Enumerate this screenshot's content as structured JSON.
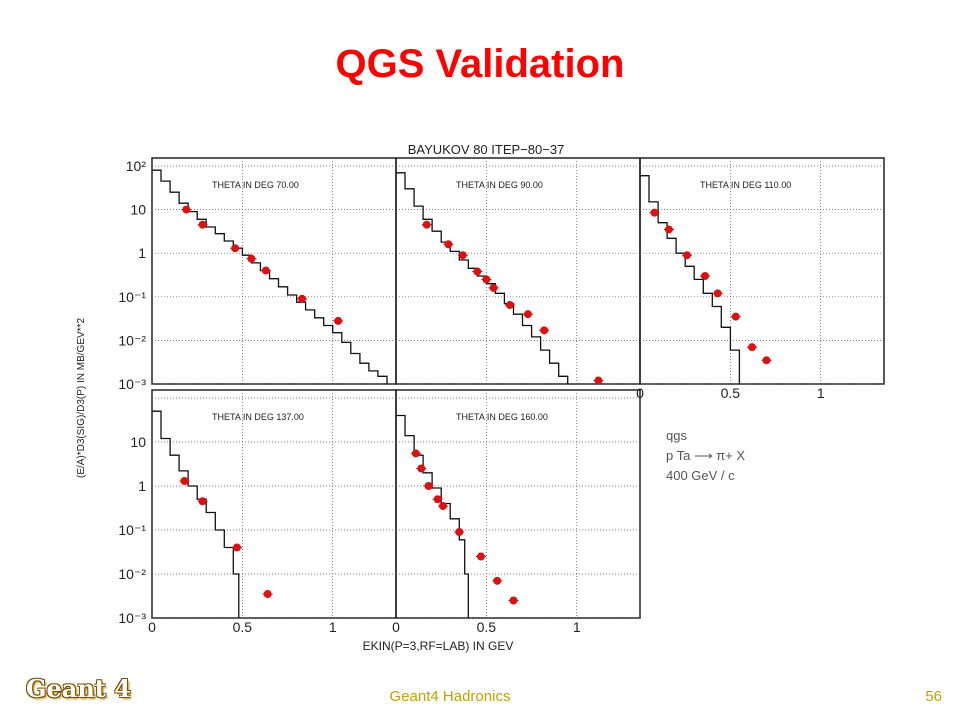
{
  "slide": {
    "title": "QGS Validation",
    "footer_logo": "Geant 4",
    "footer_center": "Geant4 Hadronics",
    "page_number": "56"
  },
  "chart_data": {
    "type": "scatter",
    "title": "BAYUKOV 80    ITEP−80−37",
    "ylabel": "(E/A)*D3(SIG)/D3(P)  IN MB/GEV**2",
    "xlabel": "EKIN(P=3,RF=LAB)  IN GEV",
    "y_scale": "log",
    "ylim": [
      0.001,
      100
    ],
    "y_ticks": [
      {
        "value": 100,
        "label": "10²"
      },
      {
        "value": 10,
        "label": "10"
      },
      {
        "value": 1,
        "label": "1"
      },
      {
        "value": 0.1,
        "label": "10⁻¹"
      },
      {
        "value": 0.01,
        "label": "10⁻²"
      },
      {
        "value": 0.001,
        "label": "10⁻³"
      }
    ],
    "x_ticks": [
      {
        "value": 0,
        "label": "0"
      },
      {
        "value": 0.5,
        "label": "0.5"
      },
      {
        "value": 1,
        "label": "1"
      }
    ],
    "legend": [
      "qgs",
      "p Ta  ⟶  π+ X",
      "400 GeV / c"
    ],
    "legend_position": "bottom-right",
    "panels": [
      {
        "label": "THETA IN DEG   70.00",
        "xlim": [
          0,
          1.35
        ],
        "points": [
          [
            0.19,
            10
          ],
          [
            0.28,
            4.5
          ],
          [
            0.46,
            1.3
          ],
          [
            0.55,
            0.75
          ],
          [
            0.63,
            0.4
          ],
          [
            0.83,
            0.09
          ],
          [
            1.03,
            0.028
          ]
        ],
        "curve": [
          [
            0.0,
            80
          ],
          [
            0.05,
            45
          ],
          [
            0.1,
            25
          ],
          [
            0.15,
            14
          ],
          [
            0.2,
            9
          ],
          [
            0.25,
            6
          ],
          [
            0.3,
            4
          ],
          [
            0.35,
            2.8
          ],
          [
            0.4,
            1.9
          ],
          [
            0.45,
            1.3
          ],
          [
            0.5,
            0.9
          ],
          [
            0.55,
            0.6
          ],
          [
            0.6,
            0.4
          ],
          [
            0.65,
            0.26
          ],
          [
            0.7,
            0.17
          ],
          [
            0.75,
            0.11
          ],
          [
            0.8,
            0.075
          ],
          [
            0.85,
            0.05
          ],
          [
            0.9,
            0.033
          ],
          [
            0.95,
            0.022
          ],
          [
            1.0,
            0.015
          ],
          [
            1.05,
            0.009
          ],
          [
            1.1,
            0.005
          ],
          [
            1.15,
            0.003
          ],
          [
            1.2,
            0.002
          ],
          [
            1.25,
            0.0015
          ],
          [
            1.3,
            0.001
          ]
        ]
      },
      {
        "label": "THETA IN DEG   90.00",
        "xlim": [
          0,
          1.35
        ],
        "points": [
          [
            0.17,
            4.5
          ],
          [
            0.29,
            1.6
          ],
          [
            0.37,
            0.9
          ],
          [
            0.45,
            0.38
          ],
          [
            0.5,
            0.25
          ],
          [
            0.54,
            0.16
          ],
          [
            0.63,
            0.065
          ],
          [
            0.73,
            0.04
          ],
          [
            0.82,
            0.017
          ],
          [
            1.12,
            0.0012
          ]
        ],
        "curve": [
          [
            0.0,
            70
          ],
          [
            0.05,
            30
          ],
          [
            0.1,
            12
          ],
          [
            0.15,
            6
          ],
          [
            0.2,
            3.2
          ],
          [
            0.25,
            1.8
          ],
          [
            0.3,
            1.1
          ],
          [
            0.35,
            0.7
          ],
          [
            0.4,
            0.45
          ],
          [
            0.45,
            0.3
          ],
          [
            0.5,
            0.2
          ],
          [
            0.55,
            0.12
          ],
          [
            0.6,
            0.07
          ],
          [
            0.65,
            0.04
          ],
          [
            0.7,
            0.022
          ],
          [
            0.75,
            0.012
          ],
          [
            0.8,
            0.006
          ],
          [
            0.85,
            0.003
          ],
          [
            0.9,
            0.0015
          ],
          [
            0.95,
            0.001
          ]
        ]
      },
      {
        "label": "THETA IN DEG   110.00",
        "xlim": [
          0,
          1.35
        ],
        "points": [
          [
            0.08,
            8.5
          ],
          [
            0.16,
            3.5
          ],
          [
            0.26,
            0.9
          ],
          [
            0.36,
            0.3
          ],
          [
            0.43,
            0.12
          ],
          [
            0.53,
            0.035
          ],
          [
            0.62,
            0.007
          ],
          [
            0.7,
            0.0035
          ]
        ],
        "curve": [
          [
            0.0,
            60
          ],
          [
            0.05,
            15
          ],
          [
            0.1,
            5
          ],
          [
            0.15,
            2.2
          ],
          [
            0.2,
            1.0
          ],
          [
            0.25,
            0.5
          ],
          [
            0.3,
            0.25
          ],
          [
            0.35,
            0.12
          ],
          [
            0.4,
            0.06
          ],
          [
            0.45,
            0.02
          ],
          [
            0.5,
            0.006
          ],
          [
            0.55,
            0.001
          ]
        ]
      },
      {
        "label": "THETA IN DEG   137.00",
        "xlim": [
          0,
          1.35
        ],
        "points": [
          [
            0.18,
            1.3
          ],
          [
            0.28,
            0.45
          ],
          [
            0.47,
            0.04
          ],
          [
            0.64,
            0.0035
          ]
        ],
        "curve": [
          [
            0.0,
            50
          ],
          [
            0.05,
            12
          ],
          [
            0.1,
            5
          ],
          [
            0.15,
            2.2
          ],
          [
            0.2,
            1.0
          ],
          [
            0.25,
            0.5
          ],
          [
            0.3,
            0.25
          ],
          [
            0.35,
            0.1
          ],
          [
            0.4,
            0.04
          ],
          [
            0.45,
            0.01
          ],
          [
            0.48,
            0.001
          ]
        ]
      },
      {
        "label": "THETA IN DEG   160.00",
        "xlim": [
          0,
          1.35
        ],
        "points": [
          [
            0.11,
            5.5
          ],
          [
            0.14,
            2.5
          ],
          [
            0.18,
            1
          ],
          [
            0.23,
            0.5
          ],
          [
            0.26,
            0.35
          ],
          [
            0.35,
            0.09
          ],
          [
            0.47,
            0.025
          ],
          [
            0.56,
            0.007
          ],
          [
            0.65,
            0.0025
          ]
        ],
        "curve": [
          [
            0.0,
            40
          ],
          [
            0.05,
            14
          ],
          [
            0.1,
            5
          ],
          [
            0.15,
            2
          ],
          [
            0.2,
            0.9
          ],
          [
            0.25,
            0.4
          ],
          [
            0.3,
            0.18
          ],
          [
            0.35,
            0.06
          ],
          [
            0.38,
            0.01
          ],
          [
            0.4,
            0.001
          ]
        ]
      }
    ],
    "colors": {
      "points": "#dd1111",
      "curve": "#111111",
      "frame": "#222222",
      "grid": "#555555"
    }
  }
}
